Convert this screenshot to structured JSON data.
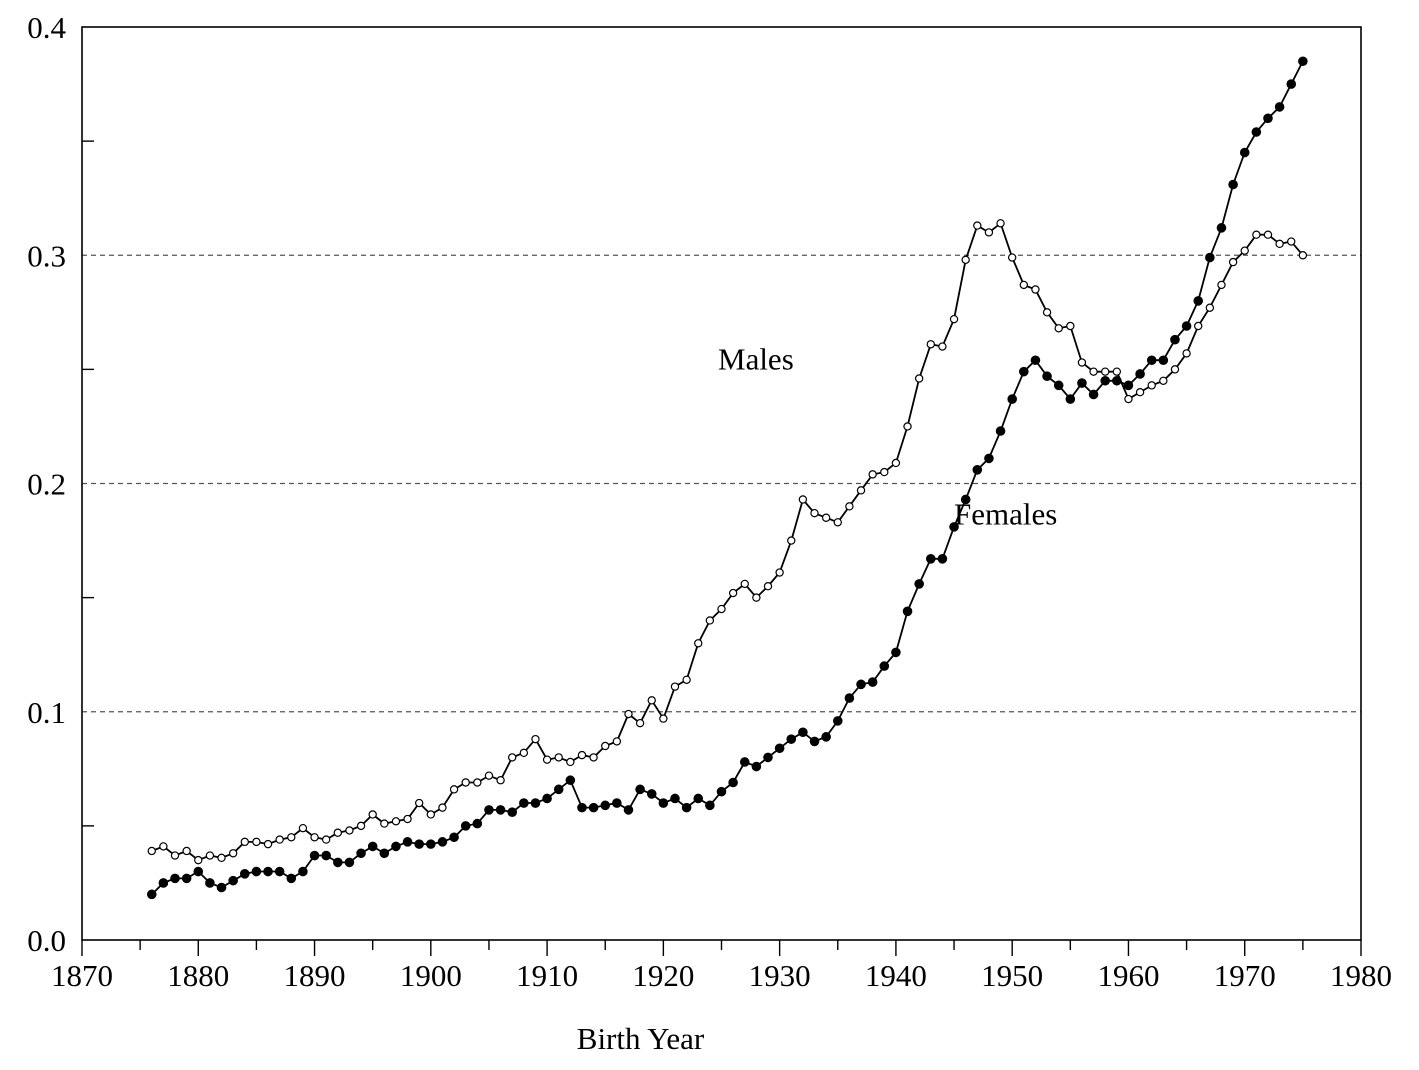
{
  "chart_data": {
    "type": "line",
    "title": "",
    "xlabel": "Birth Year",
    "ylabel": "",
    "xlim": [
      1870,
      1980
    ],
    "ylim": [
      0.0,
      0.4
    ],
    "x_ticks": [
      "1870",
      "1880",
      "1890",
      "1900",
      "1910",
      "1920",
      "1930",
      "1940",
      "1950",
      "1960",
      "1970",
      "1980"
    ],
    "y_ticks": [
      "0.0",
      "0.1",
      "0.2",
      "0.3",
      "0.4"
    ],
    "y_gridlines": [
      0.1,
      0.2,
      0.3
    ],
    "grid": "dashed horizontal at 0.1, 0.2, 0.3",
    "legend": "none",
    "series": [
      {
        "name": "Males",
        "marker": "open-circle",
        "x": [
          1876,
          1877,
          1878,
          1879,
          1880,
          1881,
          1882,
          1883,
          1884,
          1885,
          1886,
          1887,
          1888,
          1889,
          1890,
          1891,
          1892,
          1893,
          1894,
          1895,
          1896,
          1897,
          1898,
          1899,
          1900,
          1901,
          1902,
          1903,
          1904,
          1905,
          1906,
          1907,
          1908,
          1909,
          1910,
          1911,
          1912,
          1913,
          1914,
          1915,
          1916,
          1917,
          1918,
          1919,
          1920,
          1921,
          1922,
          1923,
          1924,
          1925,
          1926,
          1927,
          1928,
          1929,
          1930,
          1931,
          1932,
          1933,
          1934,
          1935,
          1936,
          1937,
          1938,
          1939,
          1940,
          1941,
          1942,
          1943,
          1944,
          1945,
          1946,
          1947,
          1948,
          1949,
          1950,
          1951,
          1952,
          1953,
          1954,
          1955,
          1956,
          1957,
          1958,
          1959,
          1960,
          1961,
          1962,
          1963,
          1964,
          1965,
          1966,
          1967,
          1968,
          1969,
          1970,
          1971,
          1972,
          1973,
          1974,
          1975
        ],
        "values": [
          0.039,
          0.041,
          0.037,
          0.039,
          0.035,
          0.037,
          0.036,
          0.038,
          0.043,
          0.043,
          0.042,
          0.044,
          0.045,
          0.049,
          0.045,
          0.044,
          0.047,
          0.048,
          0.05,
          0.055,
          0.051,
          0.052,
          0.053,
          0.06,
          0.055,
          0.058,
          0.066,
          0.069,
          0.069,
          0.072,
          0.07,
          0.08,
          0.082,
          0.088,
          0.079,
          0.08,
          0.078,
          0.081,
          0.08,
          0.085,
          0.087,
          0.099,
          0.095,
          0.105,
          0.097,
          0.111,
          0.114,
          0.13,
          0.14,
          0.145,
          0.152,
          0.156,
          0.15,
          0.155,
          0.161,
          0.175,
          0.193,
          0.187,
          0.185,
          0.183,
          0.19,
          0.197,
          0.204,
          0.205,
          0.209,
          0.225,
          0.246,
          0.261,
          0.26,
          0.272,
          0.298,
          0.313,
          0.31,
          0.314,
          0.299,
          0.287,
          0.285,
          0.275,
          0.268,
          0.269,
          0.253,
          0.249,
          0.249,
          0.249,
          0.237,
          0.24,
          0.243,
          0.245,
          0.25,
          0.257,
          0.269,
          0.277,
          0.287,
          0.297,
          0.302,
          0.309,
          0.309,
          0.305,
          0.306,
          0.3
        ]
      },
      {
        "name": "Females",
        "marker": "filled-circle",
        "x": [
          1876,
          1877,
          1878,
          1879,
          1880,
          1881,
          1882,
          1883,
          1884,
          1885,
          1886,
          1887,
          1888,
          1889,
          1890,
          1891,
          1892,
          1893,
          1894,
          1895,
          1896,
          1897,
          1898,
          1899,
          1900,
          1901,
          1902,
          1903,
          1904,
          1905,
          1906,
          1907,
          1908,
          1909,
          1910,
          1911,
          1912,
          1913,
          1914,
          1915,
          1916,
          1917,
          1918,
          1919,
          1920,
          1921,
          1922,
          1923,
          1924,
          1925,
          1926,
          1927,
          1928,
          1929,
          1930,
          1931,
          1932,
          1933,
          1934,
          1935,
          1936,
          1937,
          1938,
          1939,
          1940,
          1941,
          1942,
          1943,
          1944,
          1945,
          1946,
          1947,
          1948,
          1949,
          1950,
          1951,
          1952,
          1953,
          1954,
          1955,
          1956,
          1957,
          1958,
          1959,
          1960,
          1961,
          1962,
          1963,
          1964,
          1965,
          1966,
          1967,
          1968,
          1969,
          1970,
          1971,
          1972,
          1973,
          1974,
          1975
        ],
        "values": [
          0.02,
          0.025,
          0.027,
          0.027,
          0.03,
          0.025,
          0.023,
          0.026,
          0.029,
          0.03,
          0.03,
          0.03,
          0.027,
          0.03,
          0.037,
          0.037,
          0.034,
          0.034,
          0.038,
          0.041,
          0.038,
          0.041,
          0.043,
          0.042,
          0.042,
          0.043,
          0.045,
          0.05,
          0.051,
          0.057,
          0.057,
          0.056,
          0.06,
          0.06,
          0.062,
          0.066,
          0.07,
          0.058,
          0.058,
          0.059,
          0.06,
          0.057,
          0.066,
          0.064,
          0.06,
          0.062,
          0.058,
          0.062,
          0.059,
          0.065,
          0.069,
          0.078,
          0.076,
          0.08,
          0.084,
          0.088,
          0.091,
          0.087,
          0.089,
          0.096,
          0.106,
          0.112,
          0.113,
          0.12,
          0.126,
          0.144,
          0.156,
          0.167,
          0.167,
          0.181,
          0.193,
          0.206,
          0.211,
          0.223,
          0.237,
          0.249,
          0.254,
          0.247,
          0.243,
          0.237,
          0.244,
          0.239,
          0.245,
          0.245,
          0.243,
          0.248,
          0.254,
          0.254,
          0.263,
          0.269,
          0.28,
          0.299,
          0.312,
          0.331,
          0.345,
          0.354,
          0.36,
          0.365,
          0.375,
          0.385
        ]
      }
    ],
    "annotations": [
      {
        "text": "Males",
        "x": 1924.7,
        "y": 0.25
      },
      {
        "text": "Females",
        "x": 1945.0,
        "y": 0.182
      }
    ]
  }
}
